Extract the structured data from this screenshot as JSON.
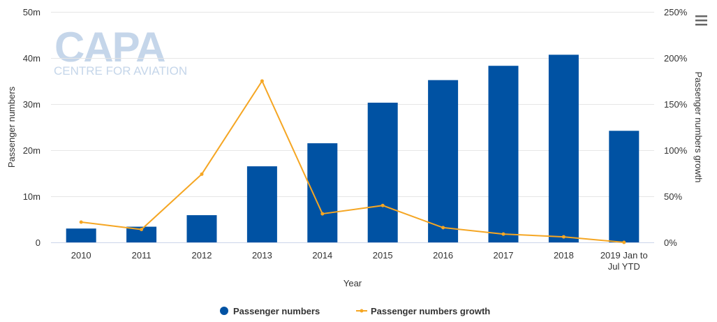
{
  "watermark": {
    "logo": "CAPA",
    "tagline": "CENTRE FOR AVIATION"
  },
  "menu": {
    "icon": "hamburger-menu-icon"
  },
  "colors": {
    "bars": "#0052a3",
    "line": "#f5a623",
    "grid": "#e6e6e6"
  },
  "chart_data": {
    "type": "bar",
    "categories": [
      "2010",
      "2011",
      "2012",
      "2013",
      "2014",
      "2015",
      "2016",
      "2017",
      "2018",
      "2019 Jan to Jul YTD"
    ],
    "category_tick_lines": [
      [
        "2010"
      ],
      [
        "2011"
      ],
      [
        "2012"
      ],
      [
        "2013"
      ],
      [
        "2014"
      ],
      [
        "2015"
      ],
      [
        "2016"
      ],
      [
        "2017"
      ],
      [
        "2018"
      ],
      [
        "2019 Jan to",
        "Jul YTD"
      ]
    ],
    "series": [
      {
        "name": "Passenger numbers",
        "type": "bar",
        "axis": "left",
        "values": [
          3.0,
          3.4,
          5.9,
          16.5,
          21.5,
          30.3,
          35.2,
          38.3,
          40.7,
          24.2
        ]
      },
      {
        "name": "Passenger numbers growth",
        "type": "line",
        "axis": "right",
        "values": [
          22,
          14,
          74,
          175,
          31,
          40,
          16,
          9,
          6,
          0
        ]
      }
    ],
    "xlabel": "Year",
    "ylabel": "Passenger numbers",
    "y2label": "Passenger numbers growth",
    "ylim": [
      0,
      50
    ],
    "y2lim": [
      0,
      250
    ],
    "y_ticks": [
      "0",
      "10m",
      "20m",
      "30m",
      "40m",
      "50m"
    ],
    "y2_ticks": [
      "0%",
      "50%",
      "100%",
      "150%",
      "200%",
      "250%"
    ],
    "grid": true,
    "legend_position": "bottom-center"
  }
}
